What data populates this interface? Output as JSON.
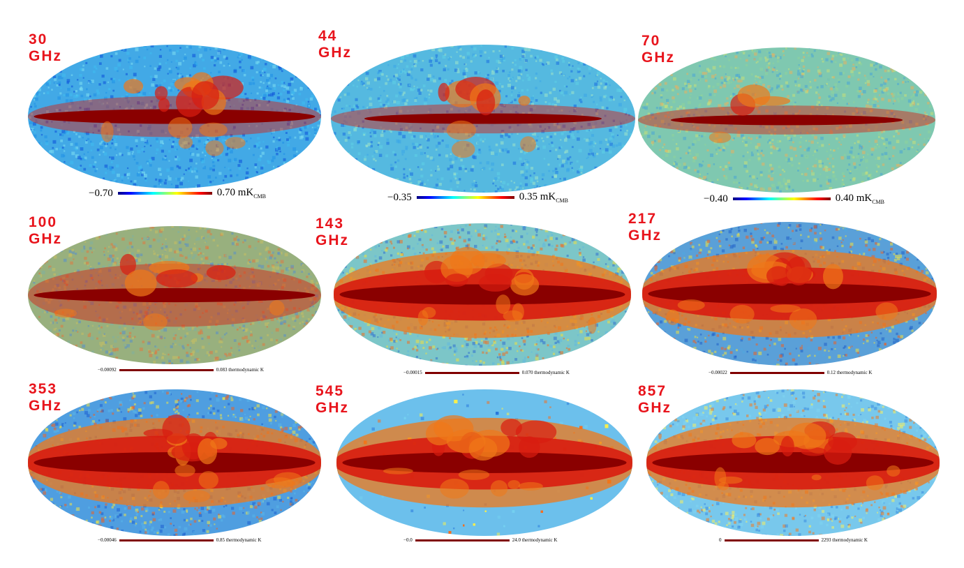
{
  "maps": [
    {
      "id": "m30",
      "freq": "30 GHz",
      "cb_min": "−0.70",
      "cb_max": "0.70 mK",
      "cb_unit_sub": "CMB",
      "cb_style": "gradient",
      "bg": "#42a9e6",
      "band": "thick",
      "bulge": "strong",
      "colors": [
        "#0b4fd9",
        "#1f8fe6",
        "#3fbef0",
        "#7fe0f2"
      ]
    },
    {
      "id": "m44",
      "freq": "44 GHz",
      "cb_min": "−0.35",
      "cb_max": "0.35 mK",
      "cb_unit_sub": "CMB",
      "cb_style": "gradient",
      "bg": "#55b9e0",
      "band": "thin",
      "bulge": "mid",
      "colors": [
        "#1a6ee0",
        "#3aa6e8",
        "#5fd1e6",
        "#9fe6c8"
      ]
    },
    {
      "id": "m70",
      "freq": "70 GHz",
      "cb_min": "−0.40",
      "cb_max": "0.40 mK",
      "cb_unit_sub": "CMB",
      "cb_style": "gradient",
      "bg": "#7fc8b0",
      "band": "thin",
      "bulge": "weak",
      "colors": [
        "#4aa6d6",
        "#8fd49a",
        "#c6e07a",
        "#e8b060"
      ]
    },
    {
      "id": "m100",
      "freq": "100 GHz",
      "cb_min": "−0.00092",
      "cb_max": "0.083 thermodynamic K",
      "cb_unit_sub": "",
      "cb_style": "dark",
      "bg": "#98b07e",
      "band": "mid",
      "bulge": "mid",
      "colors": [
        "#5a8fc8",
        "#c8c060",
        "#e07a40",
        "#7fb0a0"
      ]
    },
    {
      "id": "m143",
      "freq": "143 GHz",
      "cb_min": "−0.00015",
      "cb_max": "0.070 thermodynamic K",
      "cb_unit_sub": "",
      "cb_style": "dark",
      "bg": "#7cc6c8",
      "band": "wide",
      "bulge": "strong",
      "colors": [
        "#3070d0",
        "#60b8e0",
        "#f0e040",
        "#f07020"
      ]
    },
    {
      "id": "m217",
      "freq": "217 GHz",
      "cb_min": "−0.00022",
      "cb_max": "0.12 thermodynamic K",
      "cb_unit_sub": "",
      "cb_style": "dark",
      "bg": "#5aa0d8",
      "band": "wide",
      "bulge": "strong",
      "colors": [
        "#2060c8",
        "#50a8e0",
        "#f0e040",
        "#f06020"
      ]
    },
    {
      "id": "m353",
      "freq": "353 GHz",
      "cb_min": "−0.00046",
      "cb_max": "0.85 thermodynamic K",
      "cb_unit_sub": "",
      "cb_style": "dark",
      "bg": "#4f9ee0",
      "band": "wide",
      "bulge": "strong",
      "colors": [
        "#1e5ed0",
        "#5ab6ea",
        "#f4e444",
        "#f06020"
      ]
    },
    {
      "id": "m545",
      "freq": "545 GHz",
      "cb_min": "−0.0",
      "cb_max": "24.0 thermodynamic K",
      "cb_unit_sub": "",
      "cb_style": "dark",
      "bg": "#6cc0ec",
      "band": "wide",
      "bulge": "strong",
      "colors": [
        "#2a78dc",
        "#74d0f0",
        "#f6ee50",
        "#f47020"
      ]
    },
    {
      "id": "m857",
      "freq": "857 GHz",
      "cb_min": "0",
      "cb_max": "2293 thermodynamic K",
      "cb_unit_sub": "",
      "cb_style": "dark",
      "bg": "#78c8ec",
      "band": "wide",
      "bulge": "strong",
      "colors": [
        "#3a8ae0",
        "#80d6f2",
        "#f8f060",
        "#f47a20"
      ]
    }
  ],
  "palette": {
    "core": "#8a0000",
    "red": "#d81c10",
    "orange": "#f07818",
    "label_red": "#e8141c"
  }
}
